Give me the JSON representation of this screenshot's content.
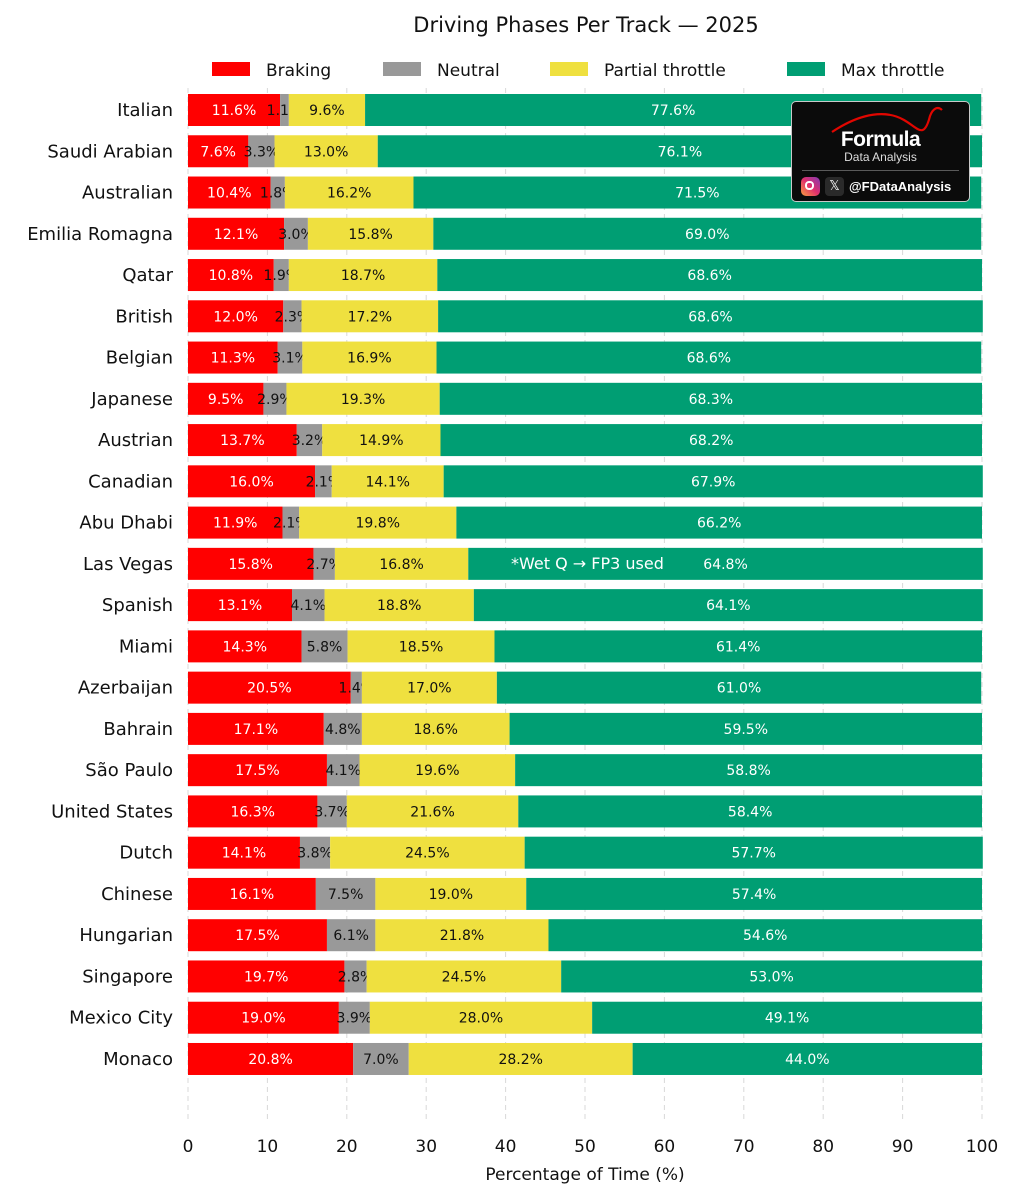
{
  "chart_data": {
    "type": "bar",
    "orientation": "horizontal",
    "stacked": true,
    "title": "Driving Phases Per Track — 2025",
    "xlabel": "Percentage of Time (%)",
    "ylabel": "",
    "xlim": [
      0,
      100
    ],
    "xticks": [
      "0",
      "10",
      "20",
      "30",
      "40",
      "50",
      "60",
      "70",
      "80",
      "90",
      "100"
    ],
    "grid": "x, dashed",
    "legend_position": "top",
    "categories": [
      "Italian",
      "Saudi Arabian",
      "Australian",
      "Emilia Romagna",
      "Qatar",
      "British",
      "Belgian",
      "Japanese",
      "Austrian",
      "Canadian",
      "Abu Dhabi",
      "Las Vegas",
      "Spanish",
      "Miami",
      "Azerbaijan",
      "Bahrain",
      "São Paulo",
      "United States",
      "Dutch",
      "Chinese",
      "Hungarian",
      "Singapore",
      "Mexico City",
      "Monaco"
    ],
    "series": [
      {
        "name": "Braking",
        "color": "#ff0000",
        "label_color": "#ffffff",
        "values": [
          11.6,
          7.6,
          10.4,
          12.1,
          10.8,
          12.0,
          11.3,
          9.5,
          13.7,
          16.0,
          11.9,
          15.8,
          13.1,
          14.3,
          20.5,
          17.1,
          17.5,
          16.3,
          14.1,
          16.1,
          17.5,
          19.7,
          19.0,
          20.8
        ]
      },
      {
        "name": "Neutral",
        "color": "#999999",
        "label_color": "#111111",
        "values": [
          1.1,
          3.3,
          1.8,
          3.0,
          1.9,
          2.3,
          3.1,
          2.9,
          3.2,
          2.1,
          2.1,
          2.7,
          4.1,
          5.8,
          1.4,
          4.8,
          4.1,
          3.7,
          3.8,
          7.5,
          6.1,
          2.8,
          3.9,
          7.0
        ]
      },
      {
        "name": "Partial throttle",
        "color": "#efe03f",
        "label_color": "#111111",
        "values": [
          9.6,
          13.0,
          16.2,
          15.8,
          18.7,
          17.2,
          16.9,
          19.3,
          14.9,
          14.1,
          19.8,
          16.8,
          18.8,
          18.5,
          17.0,
          18.6,
          19.6,
          21.6,
          24.5,
          19.0,
          21.8,
          24.5,
          28.0,
          28.2
        ]
      },
      {
        "name": "Max throttle",
        "color": "#009e73",
        "label_color": "#ffffff",
        "values": [
          77.6,
          76.1,
          71.5,
          69.0,
          68.6,
          68.6,
          68.6,
          68.3,
          68.2,
          67.9,
          66.2,
          64.8,
          64.1,
          61.4,
          61.0,
          59.5,
          58.8,
          58.4,
          57.7,
          57.4,
          54.6,
          53.0,
          49.1,
          44.0
        ]
      }
    ],
    "annotations": [
      {
        "category": "Las Vegas",
        "text": "*Wet Q → FP3 used"
      }
    ]
  },
  "branding": {
    "logo_title": "Formula",
    "logo_subtitle": "Data Analysis",
    "handle": "@FDataAnalysis",
    "icons": [
      "instagram-icon",
      "x-icon"
    ]
  }
}
